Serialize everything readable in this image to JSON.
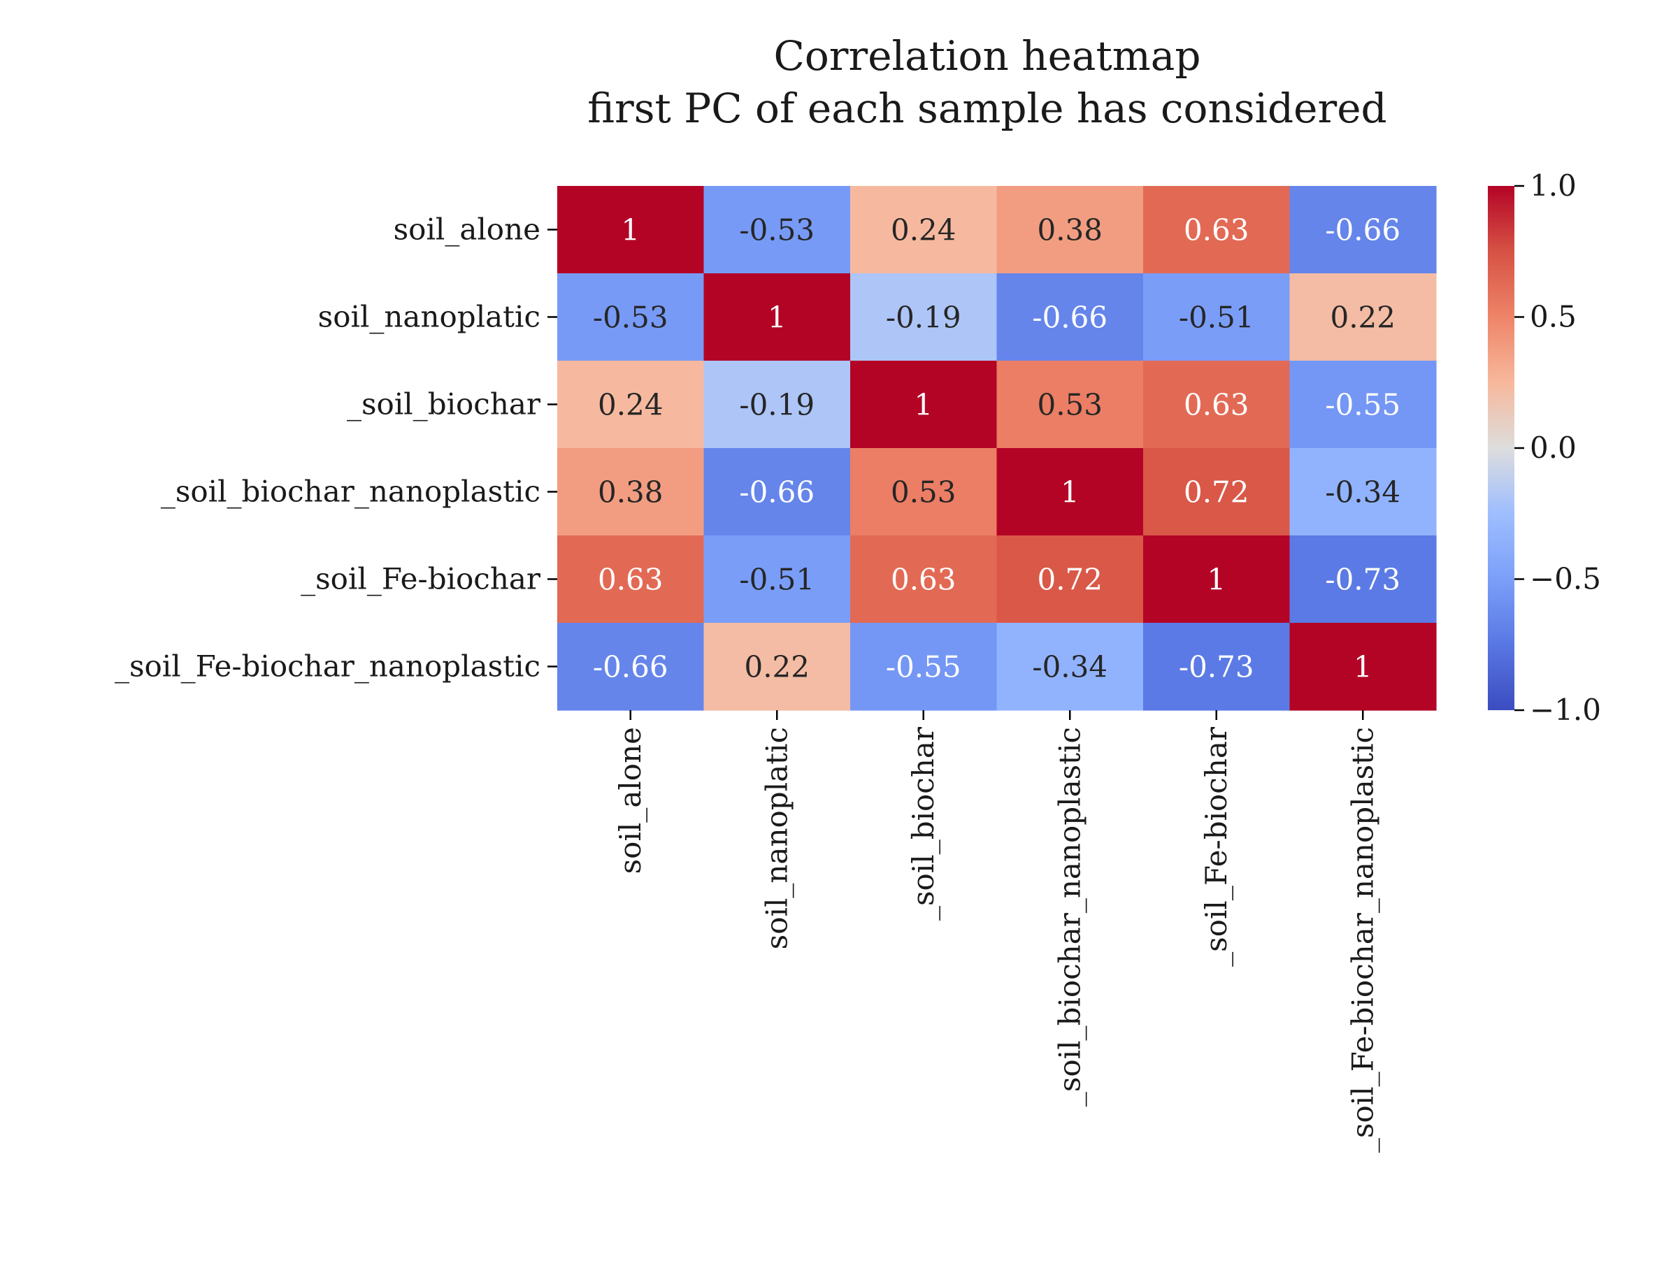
{
  "chart_data": {
    "type": "heatmap",
    "title_lines": [
      "Correlation heatmap",
      "first PC of each sample has considered"
    ],
    "row_labels": [
      "soil_alone",
      "soil_nanoplatic",
      "_soil_biochar",
      "_soil_biochar_nanoplastic",
      "_soil_Fe-biochar",
      "_soil_Fe-biochar_nanoplastic"
    ],
    "col_labels": [
      "soil_alone",
      "soil_nanoplatic",
      "_soil_biochar",
      "_soil_biochar_nanoplastic",
      "_soil_Fe-biochar",
      "_soil_Fe-biochar_nanoplastic"
    ],
    "values": [
      [
        1,
        -0.53,
        0.24,
        0.38,
        0.63,
        -0.66
      ],
      [
        -0.53,
        1,
        -0.19,
        -0.66,
        -0.51,
        0.22
      ],
      [
        0.24,
        -0.19,
        1,
        0.53,
        0.63,
        -0.55
      ],
      [
        0.38,
        -0.66,
        0.53,
        1,
        0.72,
        -0.34
      ],
      [
        0.63,
        -0.51,
        0.63,
        0.72,
        1,
        -0.73
      ],
      [
        -0.66,
        0.22,
        -0.55,
        -0.34,
        -0.73,
        1
      ]
    ],
    "annotations": [
      [
        "1",
        "-0.53",
        "0.24",
        "0.38",
        "0.63",
        "-0.66"
      ],
      [
        "-0.53",
        "1",
        "-0.19",
        "-0.66",
        "-0.51",
        "0.22"
      ],
      [
        "0.24",
        "-0.19",
        "1",
        "0.53",
        "0.63",
        "-0.55"
      ],
      [
        "0.38",
        "-0.66",
        "0.53",
        "1",
        "0.72",
        "-0.34"
      ],
      [
        "0.63",
        "-0.51",
        "0.63",
        "0.72",
        "1",
        "-0.73"
      ],
      [
        "-0.66",
        "0.22",
        "-0.55",
        "-0.34",
        "-0.73",
        "1"
      ]
    ],
    "colormap": "coolwarm",
    "vmin": -1.0,
    "vmax": 1.0,
    "colorbar": {
      "ticks": [
        1.0,
        0.5,
        0.0,
        -0.5,
        -1.0
      ],
      "tick_labels": [
        "1.0",
        "0.5",
        "0.0",
        "−0.5",
        "−1.0"
      ]
    },
    "colormap_stops": [
      {
        "t": 0.0,
        "color": "#3b4cc0"
      },
      {
        "t": 0.125,
        "color": "#5977e3"
      },
      {
        "t": 0.25,
        "color": "#7b9ff9"
      },
      {
        "t": 0.375,
        "color": "#9ebeff"
      },
      {
        "t": 0.5,
        "color": "#dddddd"
      },
      {
        "t": 0.625,
        "color": "#f7b89c"
      },
      {
        "t": 0.75,
        "color": "#ee8468"
      },
      {
        "t": 0.875,
        "color": "#d65244"
      },
      {
        "t": 1.0,
        "color": "#b40426"
      }
    ]
  }
}
